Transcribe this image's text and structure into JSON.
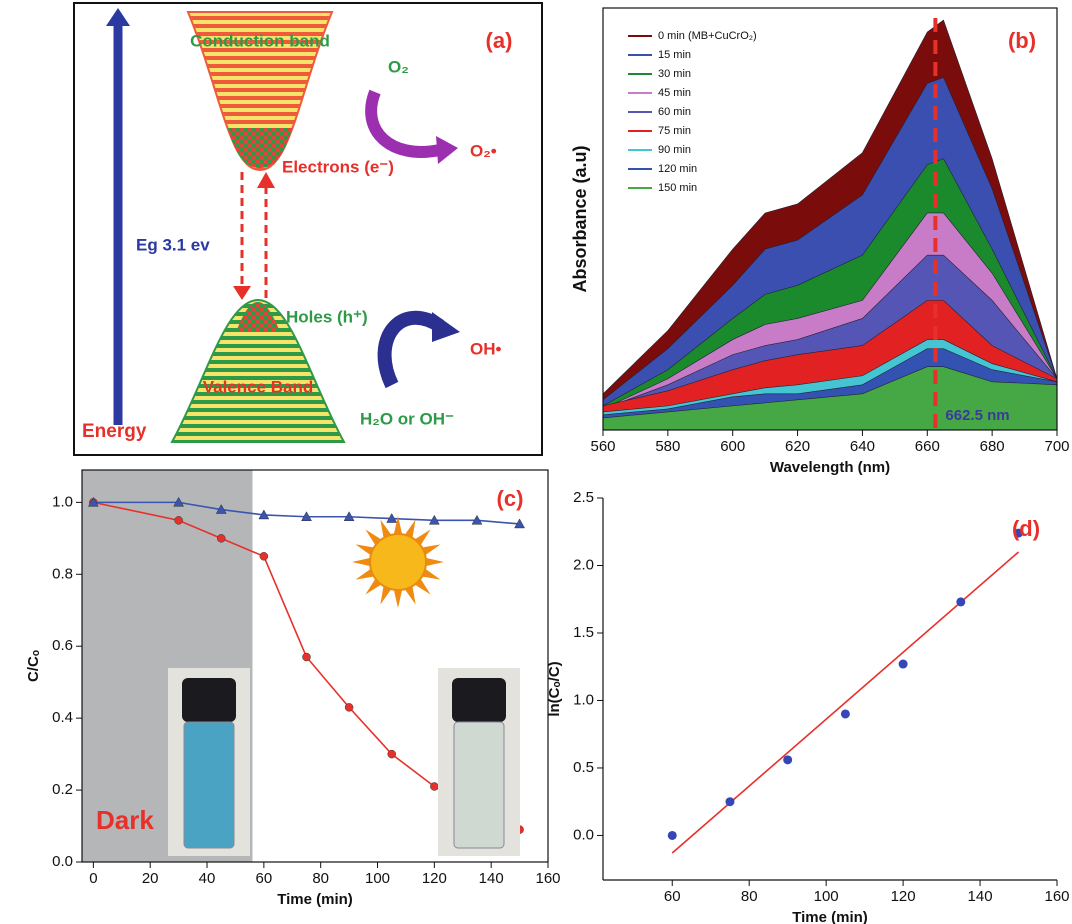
{
  "diagram": {
    "title": "(a)",
    "conduction": "Conduction band",
    "valence": "Valence Band",
    "electrons": "Electrons (e⁻)",
    "holes": "Holes (h⁺)",
    "o2": "O₂",
    "o2_radical": "O₂•",
    "oh_radical": "OH•",
    "water": "H₂O or OH⁻",
    "gap": "Eg 3.1 ev",
    "energy": "Energy"
  },
  "chart_data": [
    {
      "type": "area",
      "title": "(b)",
      "x_label": "Wavelength (nm)",
      "y_label": "Absorbance (a.u)",
      "x": [
        560,
        580,
        600,
        610,
        620,
        640,
        660,
        665,
        680,
        700
      ],
      "xlim": [
        560,
        700
      ],
      "xticks": [
        560,
        580,
        600,
        620,
        640,
        660,
        680,
        700
      ],
      "ylim": [
        0,
        1.4
      ],
      "annotation": "662.5 nm",
      "marker_x": 662.5,
      "series": [
        {
          "name": "0 min (MB+CuCrO₂)",
          "color": "#7a0c0c",
          "values": [
            0.12,
            0.33,
            0.6,
            0.72,
            0.75,
            0.92,
            1.32,
            1.36,
            0.9,
            0.17
          ]
        },
        {
          "name": "15 min",
          "color": "#3a4fb0",
          "values": [
            0.1,
            0.27,
            0.48,
            0.6,
            0.63,
            0.78,
            1.15,
            1.17,
            0.8,
            0.17
          ]
        },
        {
          "name": "30 min",
          "color": "#1b8a2c",
          "values": [
            0.08,
            0.2,
            0.37,
            0.45,
            0.48,
            0.58,
            0.88,
            0.9,
            0.6,
            0.17
          ]
        },
        {
          "name": "45 min",
          "color": "#c87cc8",
          "values": [
            0.07,
            0.17,
            0.3,
            0.35,
            0.37,
            0.43,
            0.72,
            0.72,
            0.52,
            0.17
          ]
        },
        {
          "name": "60 min",
          "color": "#5555b5",
          "values": [
            0.07,
            0.15,
            0.25,
            0.28,
            0.3,
            0.37,
            0.58,
            0.58,
            0.43,
            0.17
          ]
        },
        {
          "name": "75 min",
          "color": "#e22222",
          "values": [
            0.08,
            0.13,
            0.2,
            0.23,
            0.25,
            0.28,
            0.43,
            0.43,
            0.28,
            0.17
          ]
        },
        {
          "name": "90 min",
          "color": "#45c4d2",
          "values": [
            0.06,
            0.08,
            0.12,
            0.14,
            0.15,
            0.18,
            0.3,
            0.3,
            0.22,
            0.16
          ]
        },
        {
          "name": "120 min",
          "color": "#3352b2",
          "values": [
            0.05,
            0.07,
            0.11,
            0.12,
            0.12,
            0.15,
            0.27,
            0.27,
            0.2,
            0.16
          ]
        },
        {
          "name": "150 min",
          "color": "#46a844",
          "values": [
            0.04,
            0.06,
            0.08,
            0.09,
            0.1,
            0.12,
            0.21,
            0.21,
            0.16,
            0.15
          ]
        }
      ]
    },
    {
      "type": "line",
      "title": "(c)",
      "x_label": "Time (min)",
      "y_label": "C/Cₒ",
      "annotation": "Dark",
      "shade_end": 56,
      "x": [
        0,
        30,
        45,
        60,
        75,
        90,
        105,
        120,
        135,
        150
      ],
      "xlim": [
        -4,
        160
      ],
      "xticks": [
        0,
        20,
        40,
        60,
        80,
        100,
        120,
        140,
        160
      ],
      "ylim": [
        0,
        1.09
      ],
      "yticks": [
        {
          "value": 0,
          "label": "0.0"
        },
        0.2,
        0.4,
        0.6,
        0.8,
        {
          "value": 1,
          "label": "1.0"
        }
      ],
      "series": [
        {
          "color": "#e8302a",
          "marker": "circle",
          "values": [
            1.0,
            0.95,
            0.9,
            0.85,
            0.57,
            0.43,
            0.3,
            0.21,
            0.14,
            0.09
          ]
        },
        {
          "color": "#3a55b0",
          "marker": "triangle",
          "values": [
            1.0,
            1.0,
            0.98,
            0.965,
            0.96,
            0.96,
            0.955,
            0.95,
            0.95,
            0.94
          ]
        }
      ]
    },
    {
      "type": "scatter",
      "title": "(d)",
      "x_label": "Time (min)",
      "y_label": "ln(Cₒ/C)",
      "xlim": [
        42,
        160
      ],
      "xticks": [
        60,
        80,
        100,
        120,
        140,
        160
      ],
      "ylim": [
        -0.33,
        2.5
      ],
      "yticks": [
        {
          "value": 0,
          "label": "0.0"
        },
        0.5,
        {
          "value": 1,
          "label": "1.0"
        },
        1.5,
        {
          "value": 2,
          "label": "2.0"
        },
        2.5
      ],
      "points": {
        "color": "#3446b8",
        "x": [
          60,
          75,
          90,
          105,
          120,
          135,
          150
        ],
        "values": [
          0.0,
          0.25,
          0.56,
          0.9,
          1.27,
          1.73,
          2.24
        ]
      },
      "fit": {
        "color": "#e8302a",
        "x": [
          60,
          150
        ],
        "values": [
          -0.13,
          2.1
        ]
      }
    }
  ]
}
